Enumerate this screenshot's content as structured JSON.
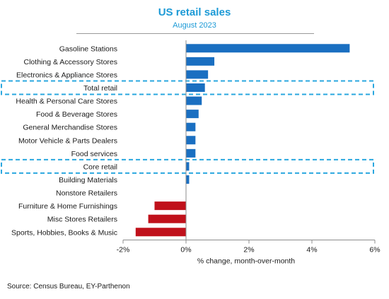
{
  "chart_data": {
    "type": "bar",
    "orientation": "horizontal",
    "title": "US retail sales",
    "subtitle": "August 2023",
    "xlabel": "% change, month-over-month",
    "xlim": [
      -2,
      6
    ],
    "xticks": [
      "-2%",
      "0%",
      "2%",
      "4%",
      "6%"
    ],
    "xtick_values": [
      -2,
      0,
      2,
      4,
      6
    ],
    "grid": false,
    "categories": [
      "Gasoline Stations",
      "Clothing & Accessory Stores",
      "Electronics & Appliance Stores",
      "Total retail",
      "Health & Personal Care Stores",
      "Food & Beverage Stores",
      "General Merchandise Stores",
      "Motor Vehicle & Parts Dealers",
      "Food services",
      "Core retail",
      "Building Materials",
      "Nonstore Retailers",
      "Furniture & Home Furnishings",
      "Misc Stores Retailers",
      "Sports, Hobbies, Books & Music"
    ],
    "values": [
      5.2,
      0.9,
      0.7,
      0.6,
      0.5,
      0.4,
      0.3,
      0.3,
      0.3,
      0.1,
      0.1,
      0.0,
      -1.0,
      -1.2,
      -1.6
    ],
    "highlighted": [
      "Total retail",
      "Core retail"
    ],
    "colors": {
      "positive": "#1a6fc1",
      "negative": "#c0111b",
      "highlight_box": "#2aa7df",
      "title": "#1c9ad6"
    }
  },
  "source": "Source: Census Bureau, EY-Parthenon"
}
